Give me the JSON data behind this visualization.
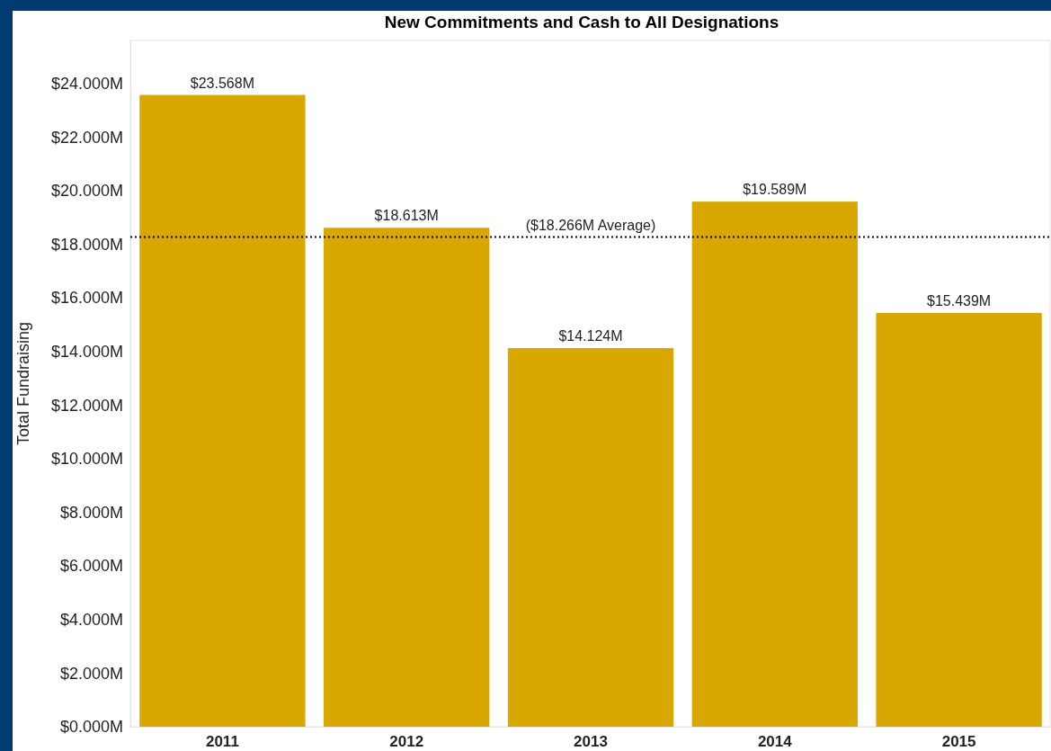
{
  "chart_data": {
    "type": "bar",
    "title": "New Commitments and Cash to All Designations",
    "ylabel": "Total Fundraising",
    "categories": [
      "2011",
      "2012",
      "2013",
      "2014",
      "2015"
    ],
    "values": [
      23.568,
      18.613,
      14.124,
      19.589,
      15.439
    ],
    "value_labels": [
      "$23.568M",
      "$18.613M",
      "$14.124M",
      "$19.589M",
      "$15.439M"
    ],
    "color": "#d9a800",
    "ylim": [
      0,
      25.6
    ],
    "yticks": [
      {
        "value": 0,
        "label": "$0.000M"
      },
      {
        "value": 2,
        "label": "$2.000M"
      },
      {
        "value": 4,
        "label": "$4.000M"
      },
      {
        "value": 6,
        "label": "$6.000M"
      },
      {
        "value": 8,
        "label": "$8.000M"
      },
      {
        "value": 10,
        "label": "$10.000M"
      },
      {
        "value": 12,
        "label": "$12.000M"
      },
      {
        "value": 14,
        "label": "$14.000M"
      },
      {
        "value": 16,
        "label": "$16.000M"
      },
      {
        "value": 18,
        "label": "$18.000M"
      },
      {
        "value": 20,
        "label": "$20.000M"
      },
      {
        "value": 22,
        "label": "$22.000M"
      },
      {
        "value": 24,
        "label": "$24.000M"
      }
    ],
    "ref_lines": [
      {
        "axis": "y",
        "value": 18.266,
        "label": "($18.266M Average)",
        "line_style": "dotted",
        "color": "#000000"
      }
    ],
    "grid": false
  }
}
